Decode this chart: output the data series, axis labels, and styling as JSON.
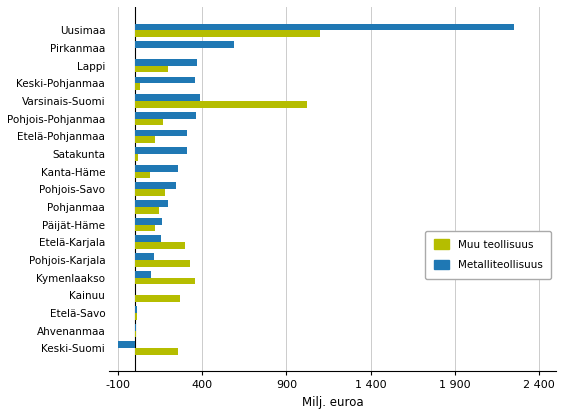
{
  "categories": [
    "Uusimaa",
    "Pirkanmaa",
    "Lappi",
    "Keski-Pohjanmaa",
    "Varsinais-Suomi",
    "Pohjois-Pohjanmaa",
    "Etelä-Pohjanmaa",
    "Satakunta",
    "Kanta-Häme",
    "Pohjois-Savo",
    "Pohjanmaa",
    "Päijät-Häme",
    "Etelä-Karjala",
    "Pohjois-Karjala",
    "Kymenlaakso",
    "Kainuu",
    "Etelä-Savo",
    "Ahvenanmaa",
    "Keski-Suomi"
  ],
  "muu_teollisuus": [
    1100,
    0,
    200,
    30,
    1020,
    170,
    120,
    20,
    90,
    180,
    145,
    120,
    300,
    330,
    360,
    270,
    15,
    8,
    260
  ],
  "metalliteollisuus": [
    2250,
    590,
    370,
    360,
    390,
    365,
    310,
    310,
    255,
    245,
    195,
    165,
    155,
    115,
    95,
    0,
    12,
    10,
    -100
  ],
  "color_muu": "#b5bd00",
  "color_metalli": "#1f78b4",
  "xlabel": "Milj. euroa",
  "xlim": [
    -150,
    2500
  ],
  "xticks": [
    -100,
    400,
    900,
    1400,
    1900,
    2400
  ],
  "xtick_labels": [
    "-100",
    "400",
    "900",
    "1 400",
    "1 900",
    "2 400"
  ],
  "bar_height": 0.38,
  "figsize": [
    5.63,
    4.16
  ],
  "dpi": 100
}
